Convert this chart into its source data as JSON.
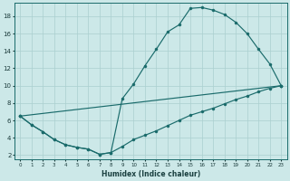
{
  "xlabel": "Humidex (Indice chaleur)",
  "bg_color": "#cce8e8",
  "line_color": "#1a6b6b",
  "grid_color": "#aacfcf",
  "xlim": [
    -0.5,
    23.5
  ],
  "ylim": [
    1.5,
    19.5
  ],
  "yticks": [
    2,
    4,
    6,
    8,
    10,
    12,
    14,
    16,
    18
  ],
  "xticks": [
    0,
    1,
    2,
    3,
    4,
    5,
    6,
    7,
    8,
    9,
    10,
    11,
    12,
    13,
    14,
    15,
    16,
    17,
    18,
    19,
    20,
    21,
    22,
    23
  ],
  "upper_curve": [
    [
      0,
      6.5
    ],
    [
      1,
      5.5
    ],
    [
      2,
      4.7
    ],
    [
      3,
      3.8
    ],
    [
      4,
      3.2
    ],
    [
      5,
      2.9
    ],
    [
      6,
      2.7
    ],
    [
      7,
      2.1
    ],
    [
      8,
      2.3
    ],
    [
      9,
      8.5
    ],
    [
      10,
      10.2
    ],
    [
      11,
      12.3
    ],
    [
      12,
      14.2
    ],
    [
      13,
      16.2
    ],
    [
      14,
      17.0
    ],
    [
      15,
      18.9
    ],
    [
      16,
      19.0
    ],
    [
      17,
      18.7
    ],
    [
      18,
      18.2
    ],
    [
      19,
      17.3
    ],
    [
      20,
      16.0
    ],
    [
      21,
      14.2
    ],
    [
      22,
      12.5
    ],
    [
      23,
      10.0
    ]
  ],
  "lower_curve": [
    [
      0,
      6.5
    ],
    [
      1,
      5.5
    ],
    [
      2,
      4.7
    ],
    [
      3,
      3.8
    ],
    [
      4,
      3.2
    ],
    [
      5,
      2.9
    ],
    [
      6,
      2.7
    ],
    [
      7,
      2.1
    ],
    [
      8,
      2.3
    ],
    [
      9,
      3.0
    ],
    [
      10,
      3.8
    ],
    [
      11,
      4.3
    ],
    [
      12,
      4.8
    ],
    [
      13,
      5.4
    ],
    [
      14,
      6.0
    ],
    [
      15,
      6.6
    ],
    [
      16,
      7.0
    ],
    [
      17,
      7.4
    ],
    [
      18,
      7.9
    ],
    [
      19,
      8.4
    ],
    [
      20,
      8.8
    ],
    [
      21,
      9.3
    ],
    [
      22,
      9.7
    ],
    [
      23,
      10.0
    ]
  ],
  "diag_line": [
    [
      0,
      6.5
    ],
    [
      23,
      10.0
    ]
  ],
  "marker_size": 2.2,
  "linewidth": 0.85
}
